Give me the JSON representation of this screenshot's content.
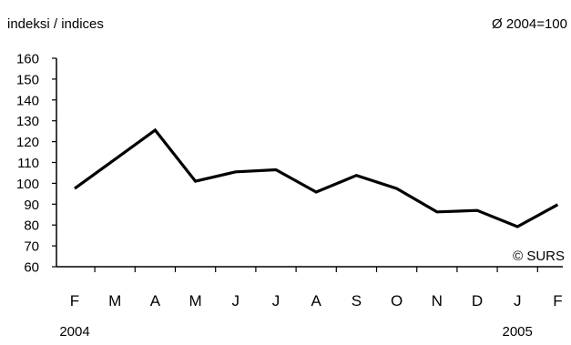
{
  "chart_data": {
    "type": "line",
    "ylabel": "indeksi / indices",
    "base_note": "Ø 2004=100",
    "copyright": "© SURS",
    "categories": [
      "F",
      "M",
      "A",
      "M",
      "J",
      "J",
      "A",
      "S",
      "O",
      "N",
      "D",
      "J",
      "F"
    ],
    "year_labels": [
      {
        "index": 0,
        "label": "2004"
      },
      {
        "index": 11,
        "label": "2005"
      }
    ],
    "series": [
      {
        "values": [
          97.5,
          111.5,
          125.5,
          101,
          105.5,
          106.5,
          95.8,
          103.8,
          97.5,
          86.3,
          87,
          79.2,
          89.8
        ],
        "color": "#000000"
      }
    ],
    "ylim": [
      60,
      160
    ],
    "yticks": [
      60,
      70,
      80,
      90,
      100,
      110,
      120,
      130,
      140,
      150,
      160
    ],
    "grid": false,
    "legend": "none"
  }
}
